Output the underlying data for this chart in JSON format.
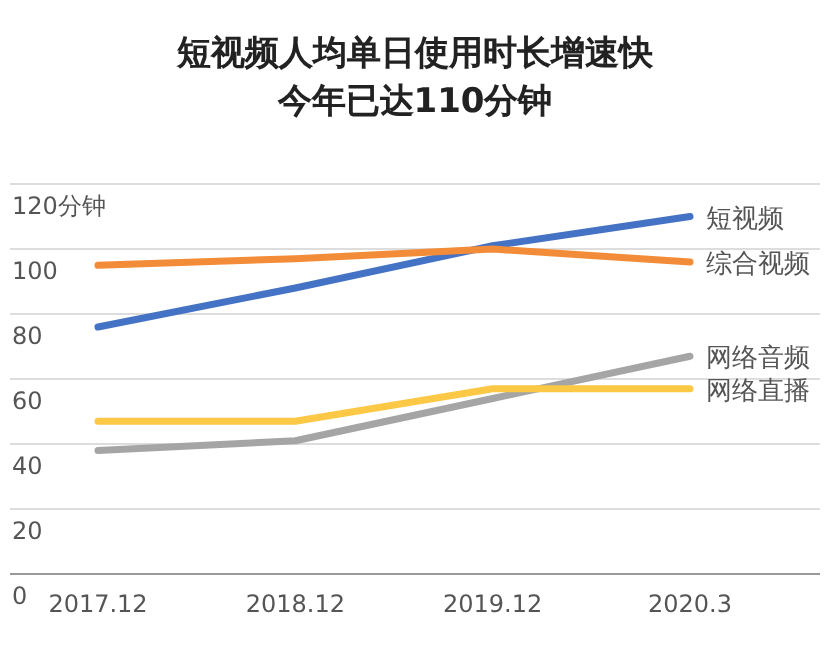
{
  "chart_data": {
    "type": "line",
    "title": "短视频人均单日使用时长增速快",
    "subtitle": "今年已达110分钟",
    "categories": [
      "2017.12",
      "2018.12",
      "2019.12",
      "2020.3"
    ],
    "series": [
      {
        "name": "短视频",
        "color": "#4472c4",
        "values": [
          76,
          88,
          101,
          110
        ]
      },
      {
        "name": "综合视频",
        "color": "#f28c38",
        "values": [
          95,
          97,
          100,
          96
        ]
      },
      {
        "name": "网络音频",
        "color": "#a5a5a5",
        "values": [
          38,
          41,
          54,
          67
        ]
      },
      {
        "name": "网络直播",
        "color": "#fcc846",
        "values": [
          47,
          47,
          57,
          57
        ]
      }
    ],
    "ylim": [
      0,
      120
    ],
    "yticks": [
      0,
      20,
      40,
      60,
      80,
      100,
      {
        "value": 120,
        "label": "120分钟"
      }
    ],
    "grid": "y",
    "legend": false,
    "marker": "none",
    "line_style": "solid"
  }
}
